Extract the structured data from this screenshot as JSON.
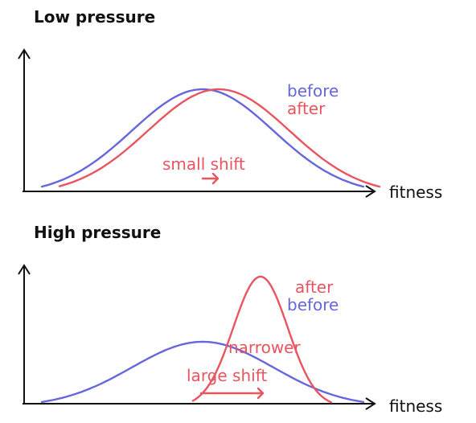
{
  "colors": {
    "before": "#6666dd",
    "after": "#e8555f",
    "axis": "#111111"
  },
  "panels": [
    {
      "title": "Low pressure",
      "x_axis_label": "fitness",
      "legend": {
        "first": "before",
        "second": "after"
      },
      "annotation_shift": "small shift",
      "curves": {
        "before": {
          "mean": 0.5,
          "sd": 0.22,
          "height": 1.0
        },
        "after": {
          "mean": 0.55,
          "sd": 0.22,
          "height": 1.0
        }
      }
    },
    {
      "title": "High pressure",
      "x_axis_label": "fitness",
      "legend": {
        "first": "after",
        "second": "before"
      },
      "annotation_shift": "large shift",
      "annotation_width": "narrower",
      "curves": {
        "before": {
          "mean": 0.5,
          "sd": 0.22,
          "height": 0.5
        },
        "after": {
          "mean": 0.68,
          "sd": 0.085,
          "height": 1.0
        }
      }
    }
  ]
}
